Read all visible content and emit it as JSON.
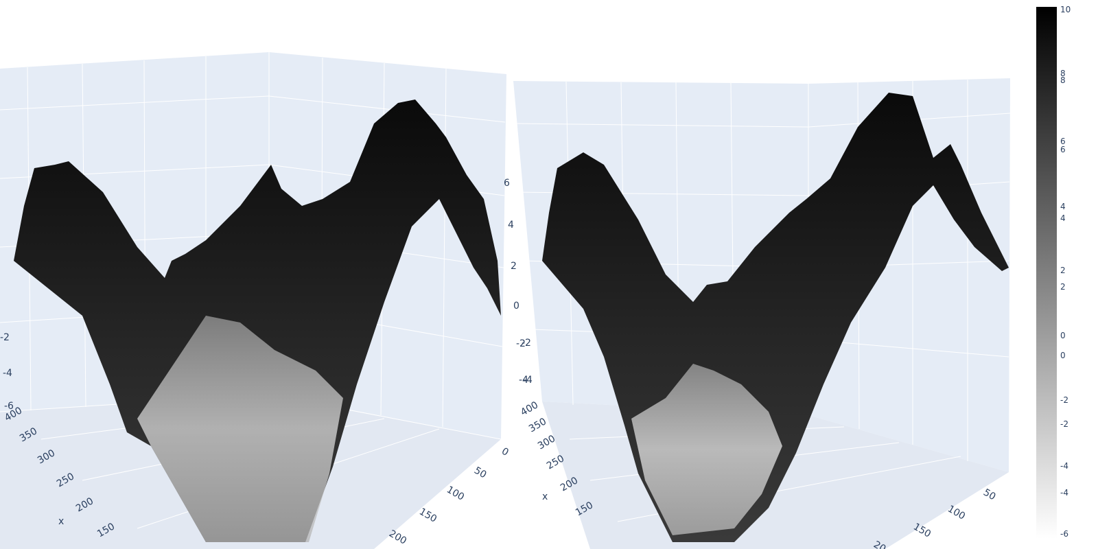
{
  "chart_data": [
    {
      "type": "surface",
      "colorscale": "Greys",
      "scene_background": "#e5ecf6",
      "grid_color": "#ffffff",
      "axes": {
        "x": {
          "title": "x",
          "ticks": [
            "400",
            "350",
            "300",
            "250",
            "200",
            "150"
          ]
        },
        "y": {
          "title": "",
          "ticks": [
            "0",
            "50",
            "100",
            "150",
            "200"
          ]
        },
        "z": {
          "title": "",
          "ticks_left": [
            "-6",
            "-4",
            "-2"
          ],
          "ticks_right": [
            "6",
            "4",
            "2",
            "0",
            "-2",
            "-4"
          ]
        }
      },
      "zlim": [
        -6,
        10
      ]
    },
    {
      "type": "surface",
      "colorscale": "Greys",
      "scene_background": "#e5ecf6",
      "grid_color": "#ffffff",
      "axes": {
        "x": {
          "title": "x",
          "ticks": [
            "400",
            "350",
            "300",
            "250",
            "200",
            "150"
          ]
        },
        "y": {
          "title": "",
          "ticks": [
            "50",
            "100",
            "150",
            "20"
          ]
        },
        "z": {
          "title": "",
          "ticks": [
            "-2",
            "-4"
          ]
        }
      },
      "zlim": [
        -6,
        10
      ]
    }
  ],
  "colorbar": {
    "colorscale": [
      "#000000",
      "#ffffff"
    ],
    "ticks": [
      "10",
      "8",
      "8",
      "6",
      "6",
      "4",
      "4",
      "2",
      "2",
      "0",
      "0",
      "-2",
      "-2",
      "-4",
      "-4",
      "-6"
    ],
    "range": [
      -6,
      10
    ]
  }
}
